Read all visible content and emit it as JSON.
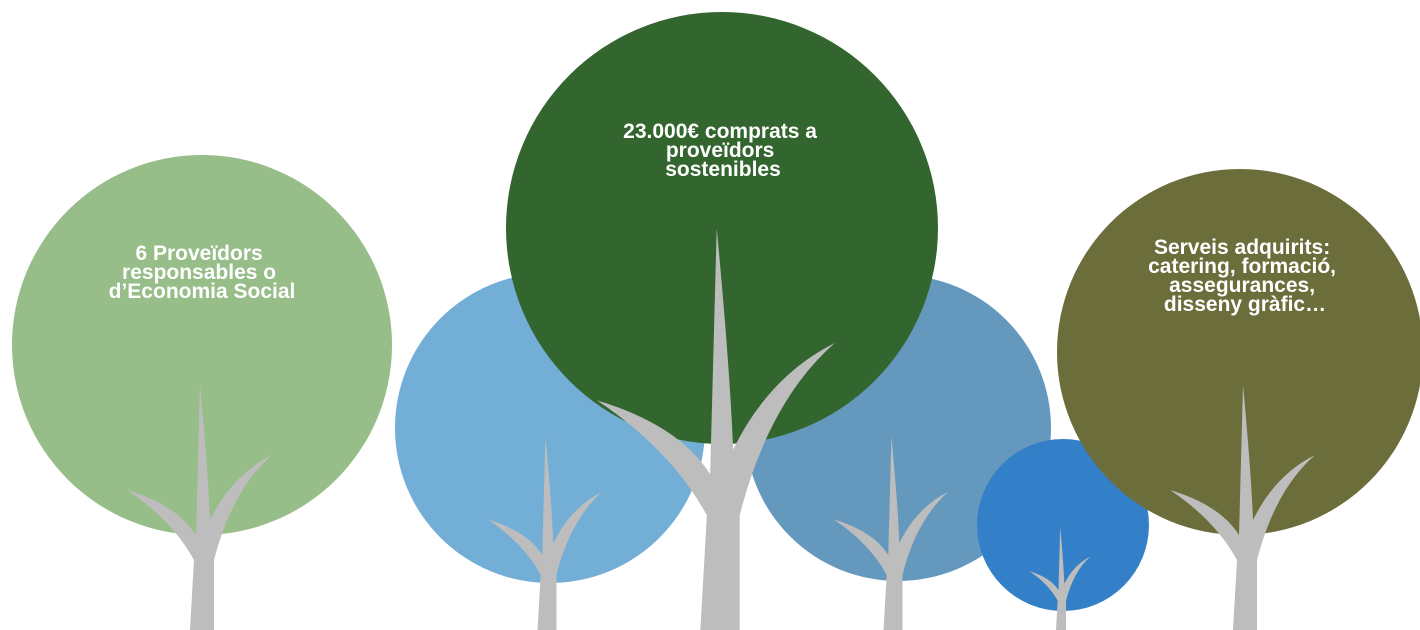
{
  "labels": [
    {
      "lines": [
        "6 Proveïdors",
        "responsables o",
        "d’Economia Social"
      ]
    },
    {
      "lines": [
        "23.000€ comprats a",
        "proveïdors",
        "sostenibles"
      ]
    },
    {
      "lines": [
        "Serveis adquirits:",
        "catering, formació,",
        "assegurances,",
        "disseny gràfic…"
      ]
    }
  ]
}
